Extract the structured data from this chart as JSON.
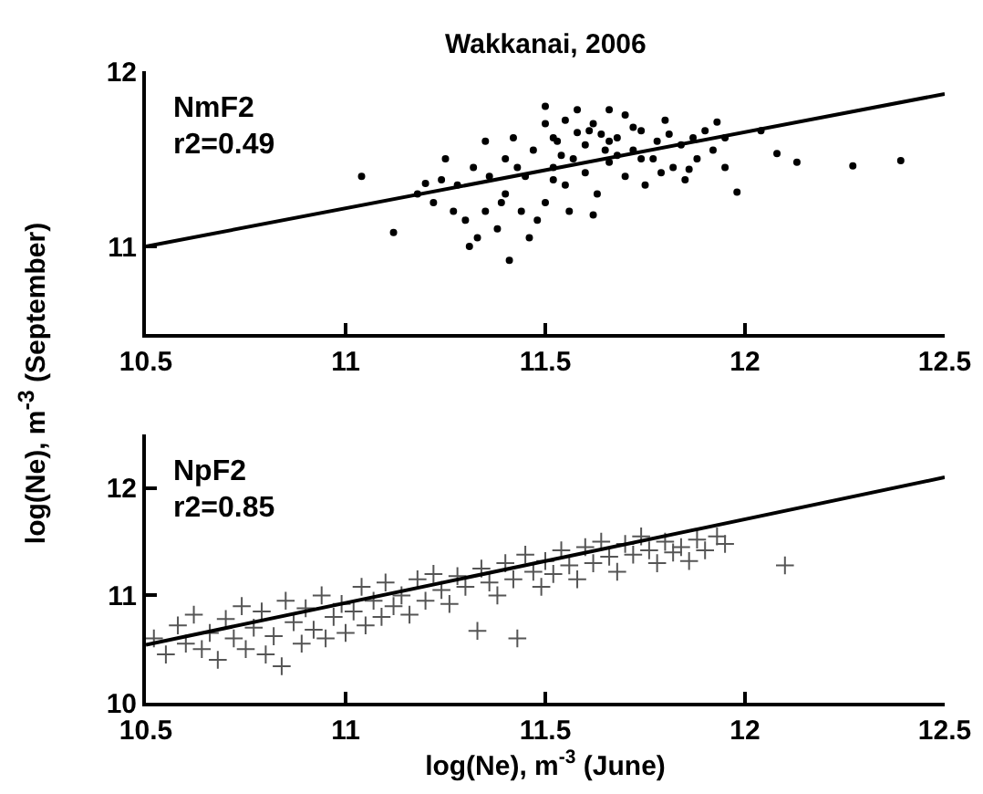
{
  "chart_data": [
    {
      "type": "scatter",
      "title": "Wakkanai, 2006",
      "ylabel": "log(Ne), m$^{-3}$ (September)",
      "annotations": [
        "NmF2",
        "r2=0.49"
      ],
      "xlim": [
        10.5,
        12.5
      ],
      "xticks": [
        10.5,
        11,
        11.5,
        12,
        12.5
      ],
      "ylim": [
        10.5,
        12
      ],
      "yticks": [
        11,
        12
      ],
      "series": [
        {
          "type": "scatter",
          "marker": "circle",
          "color": "#000000",
          "x": [
            11.04,
            11.12,
            11.41,
            12.39,
            12.27,
            12.13,
            12.08,
            11.66,
            11.93,
            12.04,
            11.98,
            11.31,
            11.25,
            11.18,
            11.22,
            11.28,
            11.3,
            11.32,
            11.35,
            11.35,
            11.38,
            11.4,
            11.4,
            11.42,
            11.44,
            11.45,
            11.47,
            11.5,
            11.5,
            11.52,
            11.53,
            11.55,
            11.55,
            11.57,
            11.58,
            11.6,
            11.6,
            11.62,
            11.63,
            11.65,
            11.66,
            11.68,
            11.7,
            11.7,
            11.72,
            11.74,
            11.75,
            11.77,
            11.78,
            11.8,
            11.82,
            11.84,
            11.85,
            11.87,
            11.88,
            11.9,
            11.92,
            11.95,
            11.95,
            11.48,
            11.46,
            11.33,
            11.27,
            11.56,
            11.62,
            11.5,
            11.58,
            11.52,
            11.54,
            11.64,
            11.68,
            11.72,
            11.79,
            11.36,
            11.43,
            11.24,
            11.2,
            11.61,
            11.66,
            11.74,
            11.81,
            11.86,
            11.52,
            11.39
          ],
          "values": [
            11.4,
            11.08,
            10.92,
            11.49,
            11.46,
            11.48,
            11.53,
            11.78,
            11.71,
            11.66,
            11.31,
            11.0,
            11.5,
            11.3,
            11.25,
            11.35,
            11.15,
            11.45,
            11.6,
            11.2,
            11.1,
            11.3,
            11.5,
            11.62,
            11.2,
            11.4,
            11.55,
            11.7,
            11.25,
            11.45,
            11.6,
            11.35,
            11.72,
            11.5,
            11.65,
            11.42,
            11.58,
            11.7,
            11.3,
            11.55,
            11.48,
            11.62,
            11.75,
            11.4,
            11.55,
            11.66,
            11.35,
            11.5,
            11.6,
            11.72,
            11.45,
            11.58,
            11.38,
            11.62,
            11.5,
            11.66,
            11.55,
            11.45,
            11.62,
            11.15,
            11.05,
            11.05,
            11.2,
            11.2,
            11.18,
            11.8,
            11.78,
            11.62,
            11.52,
            11.64,
            11.52,
            11.68,
            11.42,
            11.4,
            11.45,
            11.38,
            11.36,
            11.66,
            11.6,
            11.5,
            11.64,
            11.44,
            11.38,
            11.25
          ]
        },
        {
          "type": "line",
          "marker": "none",
          "color": "#000000",
          "x": [
            10.5,
            12.5
          ],
          "values": [
            11.0,
            11.87
          ]
        }
      ]
    },
    {
      "type": "scatter",
      "xlabel": "log(Ne), m$^{-3}$ (June)",
      "annotations": [
        "NpF2",
        "r2=0.85"
      ],
      "xlim": [
        10.5,
        12.5
      ],
      "xticks": [
        10.5,
        11,
        11.5,
        12,
        12.5
      ],
      "ylim": [
        10,
        12.5
      ],
      "yticks": [
        10,
        11,
        12
      ],
      "series": [
        {
          "type": "scatter",
          "marker": "cross",
          "color": "#555555",
          "x": [
            10.52,
            10.55,
            10.58,
            10.6,
            10.62,
            10.64,
            10.66,
            10.68,
            10.7,
            10.72,
            10.74,
            10.75,
            10.77,
            10.79,
            10.8,
            10.82,
            10.84,
            10.85,
            10.87,
            10.89,
            10.9,
            10.92,
            10.94,
            10.95,
            10.97,
            10.99,
            11.0,
            11.02,
            11.04,
            11.05,
            11.07,
            11.09,
            11.1,
            11.12,
            11.14,
            11.16,
            11.18,
            11.2,
            11.22,
            11.24,
            11.26,
            11.28,
            11.3,
            11.33,
            11.34,
            11.36,
            11.38,
            11.4,
            11.42,
            11.43,
            11.45,
            11.47,
            11.49,
            11.5,
            11.52,
            11.54,
            11.56,
            11.58,
            11.6,
            11.62,
            11.64,
            11.66,
            11.68,
            11.7,
            11.72,
            11.74,
            11.76,
            11.78,
            11.8,
            11.82,
            11.84,
            11.86,
            11.88,
            11.9,
            11.93,
            11.95,
            12.1
          ],
          "values": [
            10.6,
            10.45,
            10.72,
            10.55,
            10.82,
            10.5,
            10.65,
            10.4,
            10.78,
            10.6,
            10.9,
            10.5,
            10.7,
            10.85,
            10.45,
            10.62,
            10.34,
            10.95,
            10.75,
            10.55,
            10.88,
            10.68,
            11.0,
            10.6,
            10.8,
            10.92,
            10.65,
            10.85,
            11.08,
            10.72,
            10.95,
            10.8,
            11.12,
            10.9,
            11.0,
            10.82,
            11.15,
            10.95,
            11.2,
            11.05,
            10.92,
            11.18,
            11.08,
            10.67,
            11.25,
            11.12,
            11.0,
            11.3,
            11.15,
            10.6,
            11.38,
            11.22,
            11.08,
            11.32,
            11.2,
            11.42,
            11.28,
            11.15,
            11.45,
            11.3,
            11.5,
            11.36,
            11.22,
            11.48,
            11.38,
            11.55,
            11.42,
            11.3,
            11.5,
            11.4,
            11.45,
            11.32,
            11.52,
            11.42,
            11.55,
            11.48,
            11.28
          ]
        },
        {
          "type": "line",
          "marker": "none",
          "color": "#000000",
          "x": [
            10.5,
            12.5
          ],
          "values": [
            10.54,
            12.1
          ]
        }
      ]
    }
  ]
}
